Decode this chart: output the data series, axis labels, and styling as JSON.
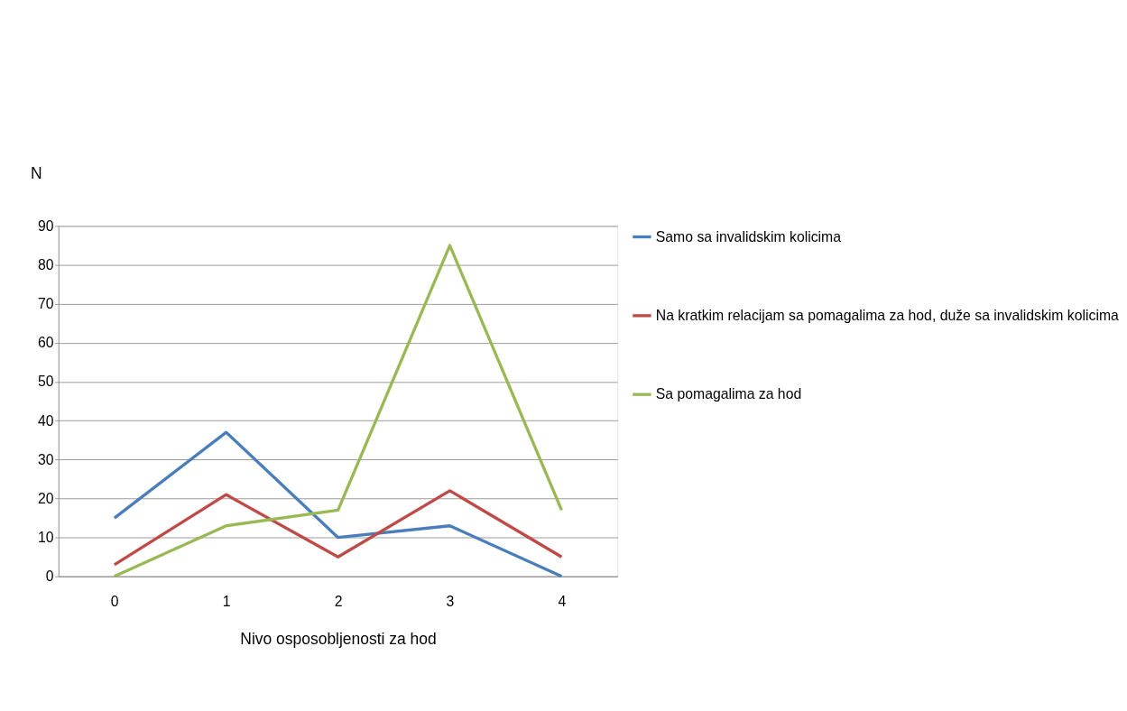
{
  "chart_data": {
    "type": "line",
    "xlabel": "Nivo osposobljenosti za hod",
    "ylabel": "N",
    "categories": [
      "0",
      "1",
      "2",
      "3",
      "4"
    ],
    "series": [
      {
        "name": "Samo sa invalidskim kolicima",
        "color": "#4a7ebb",
        "values": [
          15,
          37,
          10,
          13,
          0
        ]
      },
      {
        "name": "Na kratkim relacijam sa pomagalima za hod, duže sa invalidskim kolicima",
        "color": "#be4b48",
        "values": [
          3,
          21,
          5,
          22,
          5
        ]
      },
      {
        "name": "Sa pomagalima za hod",
        "color": "#98b954",
        "values": [
          0,
          13,
          17,
          85,
          17
        ]
      }
    ],
    "ylim": [
      0,
      90
    ],
    "yticks": [
      0,
      10,
      20,
      30,
      40,
      50,
      60,
      70,
      80,
      90
    ],
    "grid": "y",
    "legend": "right",
    "marker": "none",
    "line_style": "solid"
  }
}
